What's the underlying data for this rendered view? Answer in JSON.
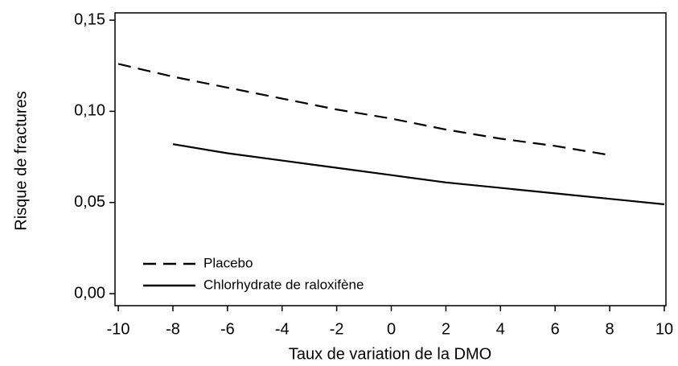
{
  "chart_data": {
    "type": "line",
    "x_label": "Taux de variation de la DMO",
    "y_label": "Risque de fractures",
    "x": [
      -10,
      -8,
      -6,
      -4,
      -2,
      0,
      2,
      4,
      6,
      8,
      10
    ],
    "series": [
      {
        "name": "Placebo",
        "color": "#000000",
        "dash": true,
        "values": [
          0.126,
          0.119,
          0.113,
          0.107,
          0.101,
          0.096,
          0.09,
          0.085,
          0.081,
          0.076,
          null
        ]
      },
      {
        "name": "Chlorhydrate de raloxifène",
        "color": "#000000",
        "dash": false,
        "values": [
          null,
          0.082,
          0.077,
          0.073,
          0.069,
          0.065,
          0.061,
          0.058,
          0.055,
          0.052,
          0.049
        ]
      }
    ],
    "xlim": [
      -10.12,
      10.06
    ],
    "ylim": [
      -0.0066,
      0.154
    ],
    "xticks": [
      -10,
      -8,
      -6,
      -4,
      -2,
      0,
      2,
      4,
      6,
      8,
      10
    ],
    "yticks": [
      {
        "value": 0,
        "label": "0,00"
      },
      {
        "value": 0.05,
        "label": "0,05"
      },
      {
        "value": 0.1,
        "label": "0,10"
      },
      {
        "value": 0.15,
        "label": "0,15"
      }
    ],
    "legend": "bottom-left"
  }
}
